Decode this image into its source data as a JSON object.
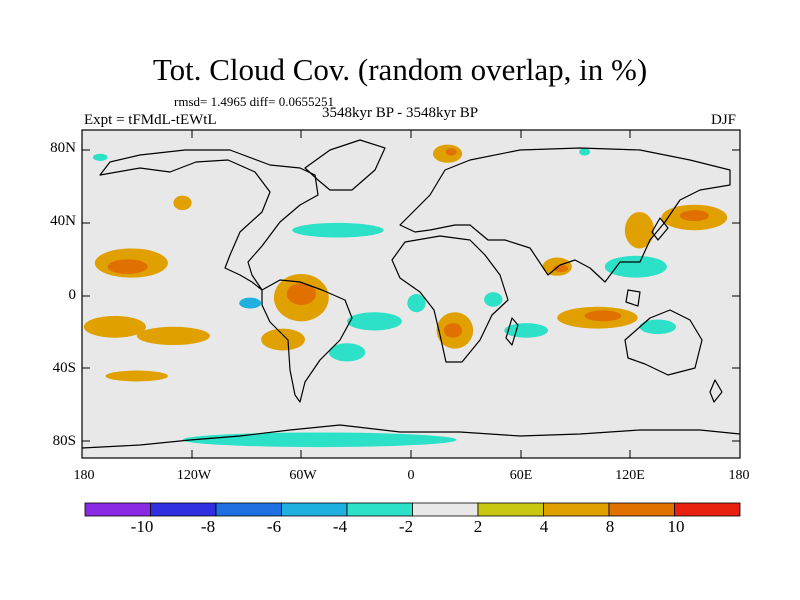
{
  "title": "Tot. Cloud Cov. (random overlap, in %)",
  "stats_line": "rmsd= 1.4965 diff= 0.0655251",
  "experiment_label": "Expt = tFMdL-tEWtL",
  "period_label": "3548kyr BP - 3548kyr BP",
  "season_label": "DJF",
  "axes": {
    "lat_ticks": [
      {
        "value": 80,
        "label": "80N"
      },
      {
        "value": 40,
        "label": "40N"
      },
      {
        "value": 0,
        "label": "0"
      },
      {
        "value": -40,
        "label": "40S"
      },
      {
        "value": -80,
        "label": "80S"
      }
    ],
    "lon_ticks": [
      {
        "value": -180,
        "label": "180"
      },
      {
        "value": -120,
        "label": "120W"
      },
      {
        "value": -60,
        "label": "60W"
      },
      {
        "value": 0,
        "label": "0"
      },
      {
        "value": 60,
        "label": "60E"
      },
      {
        "value": 120,
        "label": "120E"
      },
      {
        "value": 180,
        "label": "180"
      }
    ],
    "lon_range": [
      -180,
      180
    ],
    "lat_range": [
      -90,
      90
    ]
  },
  "colorbar": {
    "colors": [
      "#8a2be2",
      "#3030e0",
      "#1e6fe0",
      "#1fb0e0",
      "#2de0c8",
      "#e8e8e8",
      "#c8c810",
      "#e0a000",
      "#e07000",
      "#e82010"
    ],
    "labels": [
      "-10",
      "-8",
      "-6",
      "-4",
      "-2",
      "2",
      "4",
      "8",
      "10"
    ]
  },
  "chart_data": {
    "type": "heatmap",
    "title": "Tot. Cloud Cov. (random overlap, in %)",
    "units": "%",
    "levels": [
      -10,
      -8,
      -6,
      -4,
      -2,
      2,
      4,
      8,
      10
    ],
    "projection": "cylindrical equidistant",
    "anomaly_regions": [
      {
        "name": "north-pacific-east",
        "lon": -153,
        "lat": 17,
        "rx": 20,
        "ry": 8,
        "value": 4
      },
      {
        "name": "north-pacific-east-core",
        "lon": -155,
        "lat": 15,
        "rx": 11,
        "ry": 4,
        "value": 8
      },
      {
        "name": "north-pacific-west",
        "lon": 155,
        "lat": 42,
        "rx": 18,
        "ry": 7,
        "value": 4
      },
      {
        "name": "north-pacific-west-core",
        "lon": 155,
        "lat": 43,
        "rx": 8,
        "ry": 3,
        "value": 8
      },
      {
        "name": "south-america-amazon",
        "lon": -60,
        "lat": -2,
        "rx": 15,
        "ry": 13,
        "value": 4
      },
      {
        "name": "south-america-amazon-core",
        "lon": -60,
        "lat": 0,
        "rx": 8,
        "ry": 6,
        "value": 8
      },
      {
        "name": "southern-africa",
        "lon": 24,
        "lat": -20,
        "rx": 10,
        "ry": 10,
        "value": 4
      },
      {
        "name": "southern-africa-core",
        "lon": 23,
        "lat": -20,
        "rx": 5,
        "ry": 4,
        "value": 8
      },
      {
        "name": "indian-ocean-east",
        "lon": 102,
        "lat": -13,
        "rx": 22,
        "ry": 6,
        "value": 4
      },
      {
        "name": "indian-ocean-east-core",
        "lon": 105,
        "lat": -12,
        "rx": 10,
        "ry": 3,
        "value": 8
      },
      {
        "name": "india",
        "lon": 80,
        "lat": 15,
        "rx": 8,
        "ry": 5,
        "value": 4
      },
      {
        "name": "india-core",
        "lon": 82,
        "lat": 14,
        "rx": 4,
        "ry": 2,
        "value": 8
      },
      {
        "name": "china-north",
        "lon": 125,
        "lat": 35,
        "rx": 8,
        "ry": 10,
        "value": 4
      },
      {
        "name": "scandinavia-arctic",
        "lon": 20,
        "lat": 77,
        "rx": 8,
        "ry": 5,
        "value": 4
      },
      {
        "name": "scandinavia-arctic-core",
        "lon": 22,
        "lat": 78,
        "rx": 3,
        "ry": 2,
        "value": 8
      },
      {
        "name": "north-atlantic-band",
        "lon": -40,
        "lat": 35,
        "rx": 25,
        "ry": 4,
        "value": -4
      },
      {
        "name": "tropical-atlantic",
        "lon": -20,
        "lat": -15,
        "rx": 15,
        "ry": 5,
        "value": -4
      },
      {
        "name": "equatorial-pacific-east",
        "lon": -88,
        "lat": -5,
        "rx": 6,
        "ry": 3,
        "value": -6
      },
      {
        "name": "southern-ocean",
        "lon": -50,
        "lat": -80,
        "rx": 75,
        "ry": 4,
        "value": -4
      },
      {
        "name": "south-pacific",
        "lon": -162,
        "lat": -18,
        "rx": 17,
        "ry": 6,
        "value": 4
      },
      {
        "name": "south-pacific-mid",
        "lon": -130,
        "lat": -23,
        "rx": 20,
        "ry": 5,
        "value": 4
      },
      {
        "name": "maritime-continent",
        "lon": 123,
        "lat": 15,
        "rx": 17,
        "ry": 6,
        "value": -4
      },
      {
        "name": "east-africa",
        "lon": 45,
        "lat": -3,
        "rx": 5,
        "ry": 4,
        "value": -4
      },
      {
        "name": "gulf-of-guinea",
        "lon": 3,
        "lat": -5,
        "rx": 5,
        "ry": 5,
        "value": -4
      },
      {
        "name": "australia-north",
        "lon": 135,
        "lat": -18,
        "rx": 10,
        "ry": 4,
        "value": -4
      },
      {
        "name": "southeast-pacific",
        "lon": -70,
        "lat": -25,
        "rx": 12,
        "ry": 6,
        "value": 4
      },
      {
        "name": "south-atlantic",
        "lon": -35,
        "lat": -32,
        "rx": 10,
        "ry": 5,
        "value": -4
      },
      {
        "name": "north-america-west",
        "lon": -125,
        "lat": 50,
        "rx": 5,
        "ry": 4,
        "value": 4
      },
      {
        "name": "indian-ocean-southwest",
        "lon": 63,
        "lat": -20,
        "rx": 12,
        "ry": 4,
        "value": -4
      },
      {
        "name": "arctic-east",
        "lon": 95,
        "lat": 78,
        "rx": 3,
        "ry": 2,
        "value": -4
      },
      {
        "name": "arctic-west",
        "lon": -170,
        "lat": 75,
        "rx": 4,
        "ry": 2,
        "value": -4
      },
      {
        "name": "south-pacific-dashes",
        "lon": -150,
        "lat": -45,
        "rx": 17,
        "ry": 3,
        "value": 4
      }
    ]
  }
}
